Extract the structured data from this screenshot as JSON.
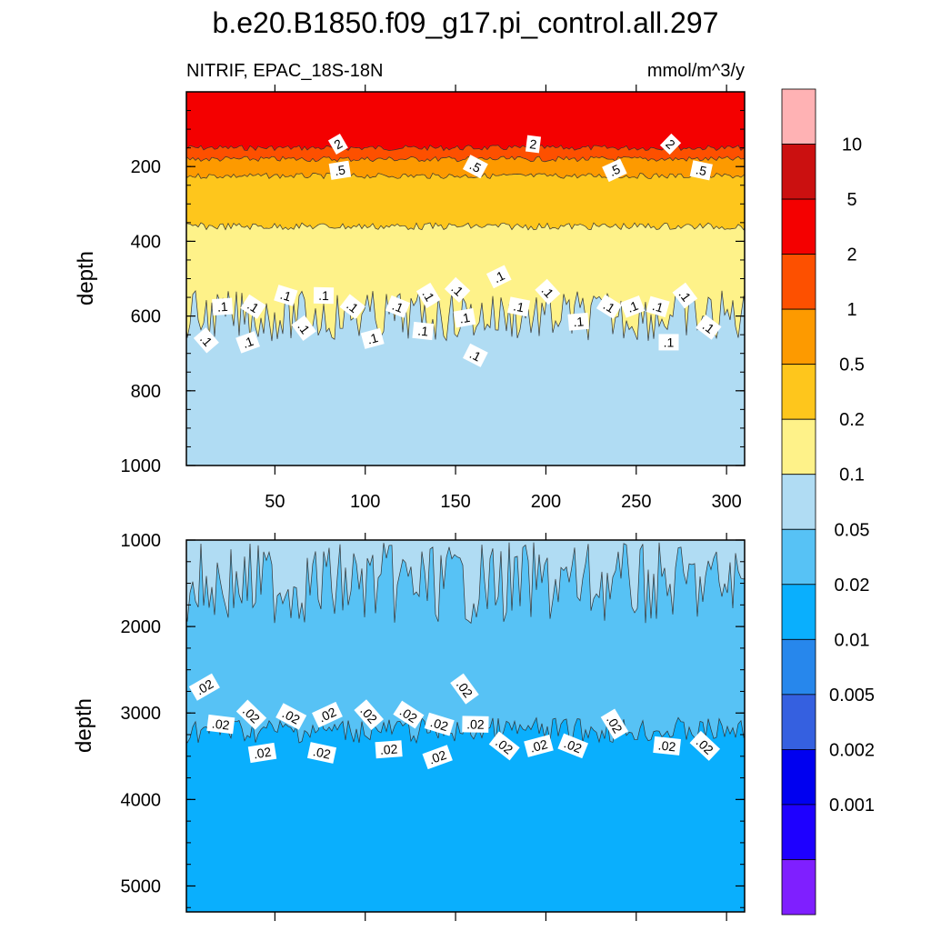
{
  "title": "b.e20.B1850.f09_g17.pi_control.all.297",
  "chart_data": {
    "type": "contour",
    "variable": "NITRIF",
    "region": "EPAC_18S-18N",
    "units": "mmol/m^3/y",
    "colorbar": {
      "levels": [
        "0.001",
        "0.002",
        "0.005",
        "0.01",
        "0.02",
        "0.05",
        "0.1",
        "0.2",
        "0.5",
        "1",
        "2",
        "5",
        "10"
      ],
      "colors": [
        "#7f1fff",
        "#1e00ff",
        "#0000f0",
        "#3560e0",
        "#2787ec",
        "#0aaffd",
        "#57c2f5",
        "#b0dcf3",
        "#fef289",
        "#fec61c",
        "#fd9a00",
        "#fd5000",
        "#f40000",
        "#cb1010",
        "#ffb2b4"
      ]
    },
    "panels": [
      {
        "name": "upper",
        "ylabel": "depth",
        "ylim": [
          1000,
          0
        ],
        "yticks": [
          "200",
          "400",
          "600",
          "800",
          "1000"
        ],
        "xlim": [
          1,
          310
        ],
        "xticks": [
          "50",
          "100",
          "150",
          "200",
          "250",
          "300"
        ],
        "layers": [
          {
            "from_depth": 0,
            "to_depth": 150,
            "value_range": "2-5",
            "color": "#f40000"
          },
          {
            "from_depth": 150,
            "to_depth": 180,
            "value_range": "1-2",
            "color": "#fd5000"
          },
          {
            "from_depth": 180,
            "to_depth": 225,
            "value_range": "0.5-1",
            "color": "#fd9a00"
          },
          {
            "from_depth": 225,
            "to_depth": 360,
            "value_range": "0.2-0.5",
            "color": "#fec61c"
          },
          {
            "from_depth": 360,
            "to_depth": 600,
            "value_range": "0.1-0.2",
            "color": "#fef289"
          },
          {
            "from_depth": 600,
            "to_depth": 1000,
            "value_range": "0.05-0.1",
            "color": "#b0dcf3"
          }
        ],
        "contour_labels": [
          {
            "text": "2",
            "x": 85,
            "depth": 140
          },
          {
            "text": "2",
            "x": 193,
            "depth": 140
          },
          {
            "text": "2",
            "x": 269,
            "depth": 140
          },
          {
            "text": ".5",
            "x": 86,
            "depth": 210
          },
          {
            "text": ".5",
            "x": 161,
            "depth": 200
          },
          {
            "text": ".5",
            "x": 238,
            "depth": 210
          },
          {
            "text": ".5",
            "x": 286,
            "depth": 210
          },
          {
            "text": ".1",
            "x": 12,
            "depth": 665
          },
          {
            "text": ".1",
            "x": 21,
            "depth": 575
          },
          {
            "text": ".1",
            "x": 38,
            "depth": 575
          },
          {
            "text": ".1",
            "x": 35,
            "depth": 670
          },
          {
            "text": ".1",
            "x": 56,
            "depth": 545
          },
          {
            "text": ".1",
            "x": 66,
            "depth": 632
          },
          {
            "text": ".1",
            "x": 77,
            "depth": 545
          },
          {
            "text": ".1",
            "x": 93,
            "depth": 575
          },
          {
            "text": ".1",
            "x": 104,
            "depth": 660
          },
          {
            "text": ".1",
            "x": 118,
            "depth": 575
          },
          {
            "text": ".1",
            "x": 135,
            "depth": 545
          },
          {
            "text": ".1",
            "x": 132,
            "depth": 640
          },
          {
            "text": ".1",
            "x": 151,
            "depth": 530
          },
          {
            "text": ".1",
            "x": 155,
            "depth": 605
          },
          {
            "text": ".1",
            "x": 161,
            "depth": 705
          },
          {
            "text": ".1",
            "x": 174,
            "depth": 495
          },
          {
            "text": ".1",
            "x": 185,
            "depth": 575
          },
          {
            "text": ".1",
            "x": 201,
            "depth": 535
          },
          {
            "text": ".1",
            "x": 218,
            "depth": 615
          },
          {
            "text": ".1",
            "x": 235,
            "depth": 575
          },
          {
            "text": ".1",
            "x": 248,
            "depth": 575
          },
          {
            "text": ".1",
            "x": 262,
            "depth": 575
          },
          {
            "text": ".1",
            "x": 277,
            "depth": 545
          },
          {
            "text": ".1",
            "x": 268,
            "depth": 670
          },
          {
            "text": ".1",
            "x": 290,
            "depth": 630
          }
        ]
      },
      {
        "name": "lower",
        "ylabel": "depth",
        "ylim": [
          5300,
          1000
        ],
        "yticks": [
          "1000",
          "2000",
          "3000",
          "4000",
          "5000"
        ],
        "xlim": [
          1,
          310
        ],
        "layers": [
          {
            "from_depth": 1000,
            "to_depth": 1500,
            "value_range": "0.05-0.1",
            "color": "#b0dcf3"
          },
          {
            "from_depth": 1500,
            "to_depth": 3200,
            "value_range": "0.02-0.05",
            "color": "#57c2f5"
          },
          {
            "from_depth": 3200,
            "to_depth": 5300,
            "value_range": "0.01-0.02",
            "color": "#0aaffd"
          }
        ],
        "contour_labels": [
          {
            "text": ".02",
            "x": 11,
            "depth": 2700
          },
          {
            "text": ".02",
            "x": 20,
            "depth": 3130
          },
          {
            "text": ".02",
            "x": 37,
            "depth": 3020
          },
          {
            "text": ".02",
            "x": 43,
            "depth": 3460
          },
          {
            "text": ".02",
            "x": 59,
            "depth": 3040
          },
          {
            "text": ".02",
            "x": 79,
            "depth": 3020
          },
          {
            "text": ".02",
            "x": 76,
            "depth": 3460
          },
          {
            "text": ".02",
            "x": 102,
            "depth": 3020
          },
          {
            "text": ".02",
            "x": 113,
            "depth": 3420
          },
          {
            "text": ".02",
            "x": 124,
            "depth": 3020
          },
          {
            "text": ".02",
            "x": 140,
            "depth": 3510
          },
          {
            "text": ".02",
            "x": 141,
            "depth": 3130
          },
          {
            "text": ".02",
            "x": 155,
            "depth": 2720
          },
          {
            "text": ".02",
            "x": 161,
            "depth": 3130
          },
          {
            "text": ".02",
            "x": 177,
            "depth": 3380
          },
          {
            "text": ".02",
            "x": 196,
            "depth": 3380
          },
          {
            "text": ".02",
            "x": 215,
            "depth": 3380
          },
          {
            "text": ".02",
            "x": 238,
            "depth": 3130
          },
          {
            "text": ".02",
            "x": 267,
            "depth": 3380
          },
          {
            "text": ".02",
            "x": 288,
            "depth": 3380
          }
        ]
      }
    ]
  }
}
